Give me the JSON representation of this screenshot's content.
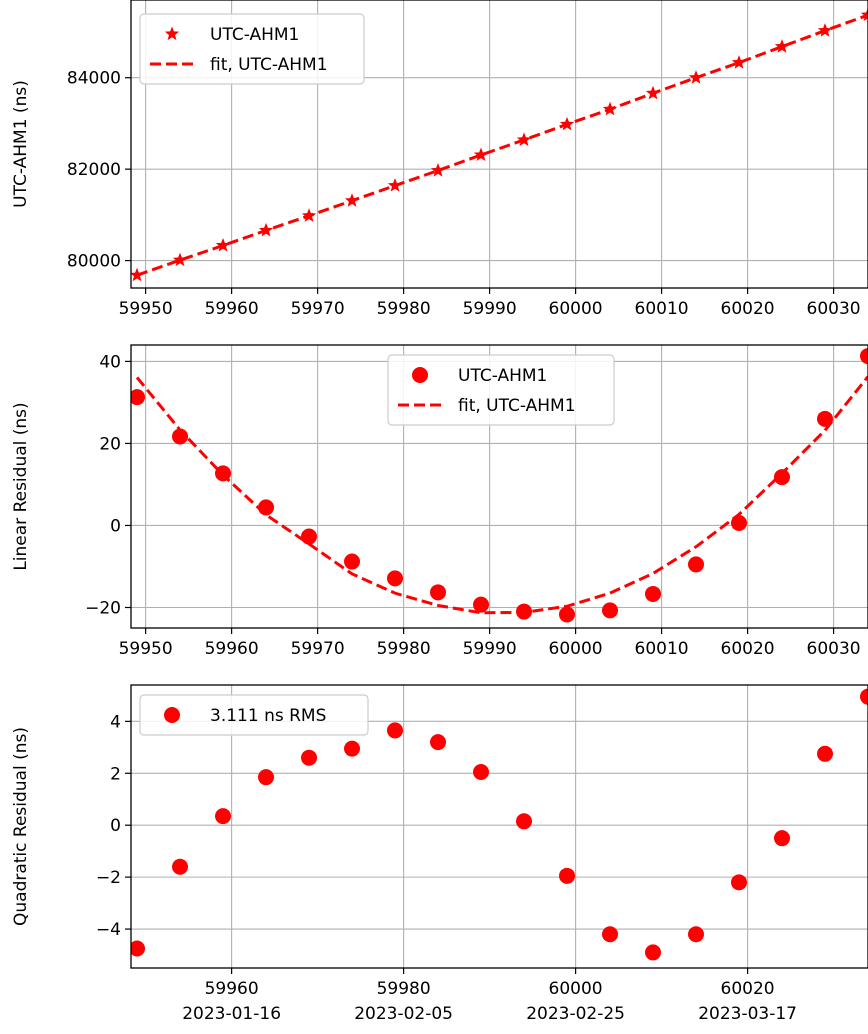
{
  "chart_data": [
    {
      "type": "line",
      "ylabel": "UTC-AHM1 (ns)",
      "xlim": [
        59948.3,
        60034
      ],
      "ylim": [
        79400,
        85700
      ],
      "xticks": [
        59950,
        59960,
        59970,
        59980,
        59990,
        60000,
        60010,
        60020,
        60030
      ],
      "yticks": [
        80000,
        82000,
        84000
      ],
      "xtick_labels": [
        "59950",
        "59960",
        "59970",
        "59980",
        "59990",
        "60000",
        "60010",
        "60020",
        "60030"
      ],
      "ytick_labels": [
        "80000",
        "82000",
        "84000"
      ],
      "grid": true,
      "legend": {
        "position": "top-left",
        "entries": [
          "UTC-AHM1",
          "fit, UTC-AHM1"
        ]
      },
      "color": "#ff0000",
      "series": [
        {
          "name": "UTC-AHM1",
          "marker": "star",
          "x": [
            59949,
            59954,
            59959,
            59964,
            59969,
            59974,
            59979,
            59984,
            59989,
            59994,
            59999,
            60004,
            60009,
            60014,
            60019,
            60024,
            60029,
            60034
          ],
          "values": [
            79680,
            80010,
            80330,
            80660,
            80980,
            81310,
            81640,
            81970,
            82310,
            82640,
            82980,
            83310,
            83660,
            84000,
            84330,
            84680,
            85030,
            85370
          ]
        },
        {
          "name": "fit, UTC-AHM1",
          "style": "dashed",
          "x": [
            59949,
            59954,
            59959,
            59964,
            59969,
            59974,
            59979,
            59984,
            59989,
            59994,
            59999,
            60004,
            60009,
            60014,
            60019,
            60024,
            60029,
            60034
          ],
          "values": [
            79680,
            80010,
            80330,
            80660,
            80980,
            81310,
            81640,
            81970,
            82310,
            82640,
            82980,
            83310,
            83660,
            84000,
            84330,
            84680,
            85030,
            85370
          ]
        }
      ]
    },
    {
      "type": "scatter",
      "ylabel": "Linear Residual (ns)",
      "xlim": [
        59948.3,
        60034
      ],
      "ylim": [
        -25,
        44
      ],
      "xticks": [
        59950,
        59960,
        59970,
        59980,
        59990,
        60000,
        60010,
        60020,
        60030
      ],
      "yticks": [
        -20,
        0,
        20,
        40
      ],
      "xtick_labels": [
        "59950",
        "59960",
        "59970",
        "59980",
        "59990",
        "60000",
        "60010",
        "60020",
        "60030"
      ],
      "ytick_labels": [
        "−20",
        "0",
        "20",
        "40"
      ],
      "grid": true,
      "legend": {
        "position": "top-center",
        "entries": [
          "UTC-AHM1",
          "fit, UTC-AHM1"
        ]
      },
      "color": "#ff0000",
      "series": [
        {
          "name": "UTC-AHM1",
          "marker": "circle",
          "x": [
            59949,
            59954,
            59959,
            59964,
            59969,
            59974,
            59979,
            59984,
            59989,
            59994,
            59999,
            60004,
            60009,
            60014,
            60019,
            60024,
            60029,
            60034
          ],
          "values": [
            31.3,
            21.7,
            12.7,
            4.4,
            -2.7,
            -8.8,
            -12.9,
            -16.3,
            -19.3,
            -21.0,
            -21.7,
            -20.7,
            -16.7,
            -9.5,
            0.6,
            11.8,
            26.0,
            41.3
          ]
        },
        {
          "name": "fit, UTC-AHM1",
          "style": "dashed",
          "x": [
            59949,
            59954,
            59959,
            59964,
            59969,
            59974,
            59979,
            59984,
            59989,
            59994,
            59999,
            60004,
            60009,
            60014,
            60019,
            60024,
            60029,
            60034
          ],
          "values": [
            36.1,
            23.3,
            12.3,
            2.6,
            -4.5,
            -11.8,
            -16.5,
            -19.5,
            -21.3,
            -21.2,
            -19.7,
            -16.5,
            -11.7,
            -5.2,
            2.7,
            12.7,
            23.2,
            36.3
          ]
        }
      ]
    },
    {
      "type": "scatter",
      "ylabel": "Quadratic Residual (ns)",
      "xlim": [
        59948.3,
        60034
      ],
      "ylim": [
        -5.5,
        5.4
      ],
      "xticks": [
        59960,
        59980,
        60000,
        60020
      ],
      "yticks": [
        -4,
        -2,
        0,
        2,
        4
      ],
      "xtick_labels": [
        "59960\n2023-01-16",
        "59980\n2023-02-05",
        "60000\n2023-02-25",
        "60020\n2023-03-17"
      ],
      "xtick_mjd": [
        "59960",
        "59980",
        "60000",
        "60020"
      ],
      "xtick_dates": [
        "2023-01-16",
        "2023-02-05",
        "2023-02-25",
        "2023-03-17"
      ],
      "ytick_labels": [
        "−4",
        "−2",
        "0",
        "2",
        "4"
      ],
      "grid": true,
      "legend": {
        "position": "top-left",
        "entries": [
          "3.111 ns RMS"
        ]
      },
      "color": "#ff0000",
      "series": [
        {
          "name": "3.111 ns RMS",
          "marker": "circle",
          "x": [
            59949,
            59954,
            59959,
            59964,
            59969,
            59974,
            59979,
            59984,
            59989,
            59994,
            59999,
            60004,
            60009,
            60014,
            60019,
            60024,
            60029,
            60034
          ],
          "values": [
            -4.75,
            -1.6,
            0.35,
            1.85,
            2.6,
            2.95,
            3.65,
            3.2,
            2.05,
            0.15,
            -1.95,
            -4.2,
            -4.9,
            -4.2,
            -2.2,
            -0.5,
            2.75,
            4.95
          ]
        }
      ]
    }
  ]
}
